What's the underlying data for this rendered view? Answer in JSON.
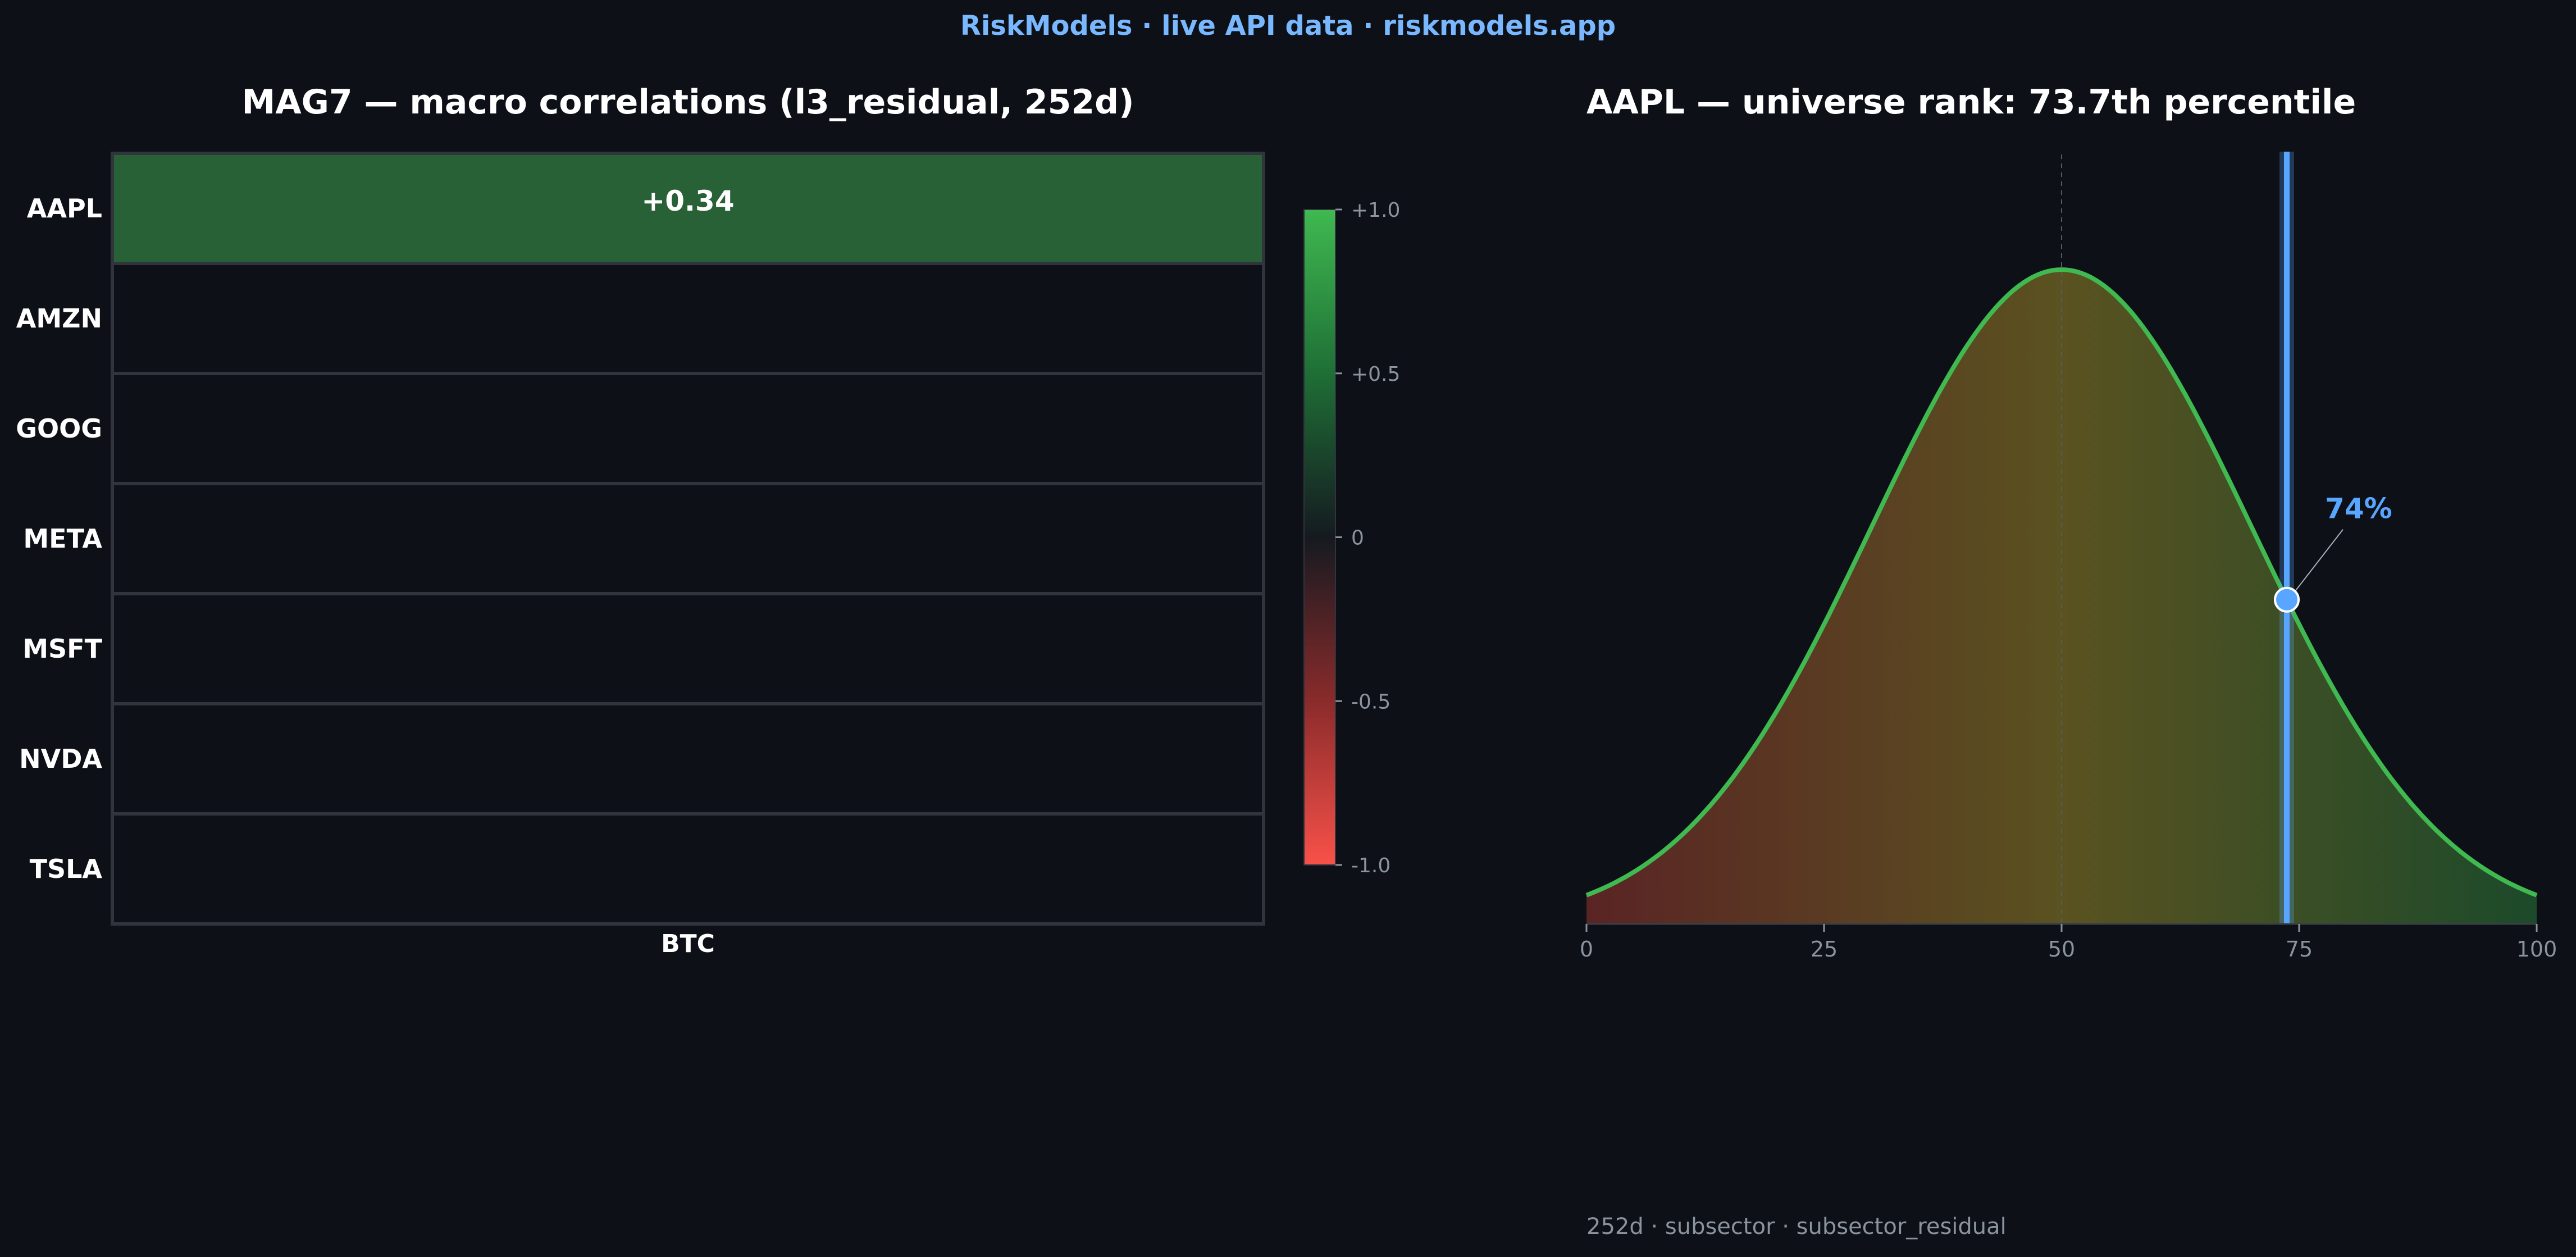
{
  "banner": "RiskModels  ·  live API data  ·  riskmodels.app",
  "colors": {
    "background": "#0d1017",
    "banner": "#79b8ff",
    "positive": "#3fb950",
    "negative": "#f85149",
    "accent_blue": "#58a6ff",
    "cell_border": "#30343c",
    "text": "#ffffff",
    "muted_text": "#8b949e"
  },
  "chart_data": [
    {
      "type": "heatmap",
      "title": "MAG7 — macro correlations (l3_residual, 252d)",
      "rows": [
        "AAPL",
        "AMZN",
        "GOOG",
        "META",
        "MSFT",
        "NVDA",
        "TSLA"
      ],
      "columns": [
        "BTC"
      ],
      "values": [
        [
          0.34
        ],
        [
          null
        ],
        [
          null
        ],
        [
          null
        ],
        [
          null
        ],
        [
          null
        ],
        [
          null
        ]
      ],
      "cell_labels": [
        "+0.34",
        "",
        "",
        "",
        "",
        "",
        ""
      ],
      "colorbar": {
        "range": [
          -1.0,
          1.0
        ],
        "ticks": [
          1.0,
          0.5,
          0,
          -0.5,
          -1.0
        ],
        "tick_labels": [
          "+1.0",
          "+0.5",
          "0",
          "-0.5",
          "-1.0"
        ]
      }
    },
    {
      "type": "area",
      "title": "AAPL — universe rank: 73.7th percentile",
      "ticker": "AAPL",
      "percentile": 73.7,
      "marker_label": "74%",
      "distribution": "normal",
      "distribution_mean": 50,
      "distribution_sd": 20,
      "xlim": [
        0,
        100
      ],
      "x_ticks": [
        0,
        25,
        50,
        75,
        100
      ],
      "grid": false,
      "footnote": "252d · subsector · subsector_residual"
    }
  ]
}
